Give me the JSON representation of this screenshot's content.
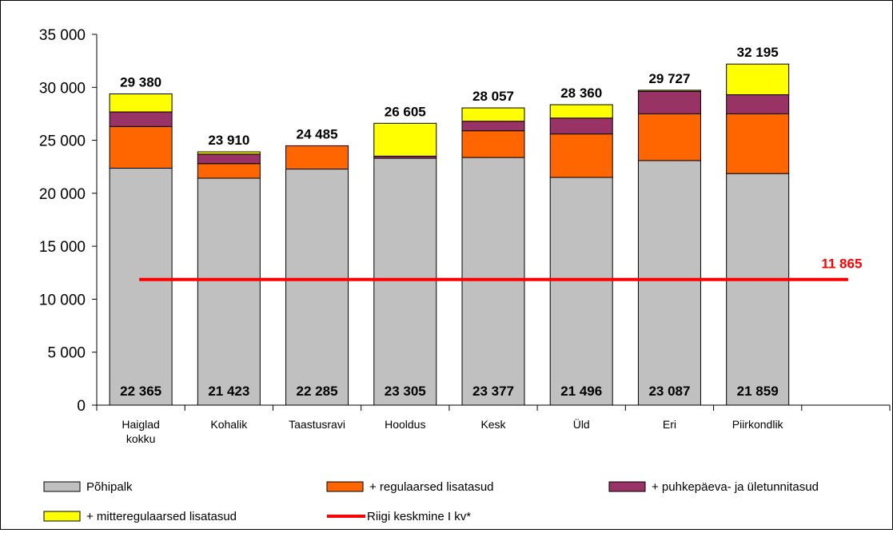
{
  "chart_data": {
    "type": "bar",
    "stacked": true,
    "categories": [
      [
        "Haiglad",
        "kokku"
      ],
      [
        "Kohalik"
      ],
      [
        "Taastusravi"
      ],
      [
        "Hooldus"
      ],
      [
        "Kesk"
      ],
      [
        "Üld"
      ],
      [
        "Eri"
      ],
      [
        "Piirkondlik"
      ]
    ],
    "series": [
      {
        "name": "Põhipalk",
        "color": "#c0c0c0",
        "values": [
          22365,
          21423,
          22285,
          23305,
          23377,
          21496,
          23087,
          21859
        ]
      },
      {
        "name": "+ regulaarsed lisatasud",
        "color": "#ff6600",
        "values": [
          3935,
          1377,
          2200,
          0,
          2523,
          4104,
          4413,
          5641
        ]
      },
      {
        "name": "+ puhkepäeva- ja ületunnitasud",
        "color": "#993366",
        "values": [
          1380,
          900,
          0,
          200,
          900,
          1500,
          2127,
          1800
        ]
      },
      {
        "name": "+ mitteregulaarsed lisatasud",
        "color": "#ffff00",
        "values": [
          1700,
          210,
          0,
          3100,
          1257,
          1260,
          100,
          2895
        ]
      }
    ],
    "base_labels": [
      "22 365",
      "21 423",
      "22 285",
      "23 305",
      "23 377",
      "21 496",
      "23 087",
      "21 859"
    ],
    "total_labels": [
      "29 380",
      "23 910",
      "24 485",
      "26 605",
      "28 057",
      "28 360",
      "29 727",
      "32 195"
    ],
    "reference_line": {
      "name": "Riigi keskmine I kv*",
      "value": 11865,
      "label": "11 865",
      "color": "#ff0000"
    },
    "yticks": [
      0,
      5000,
      10000,
      15000,
      20000,
      25000,
      30000,
      35000
    ],
    "ytick_labels": [
      "0",
      "5 000",
      "10 000",
      "15 000",
      "20 000",
      "25 000",
      "30 000",
      "35 000"
    ],
    "ylim": [
      0,
      35000
    ],
    "grid": false,
    "legend_position": "bottom"
  }
}
